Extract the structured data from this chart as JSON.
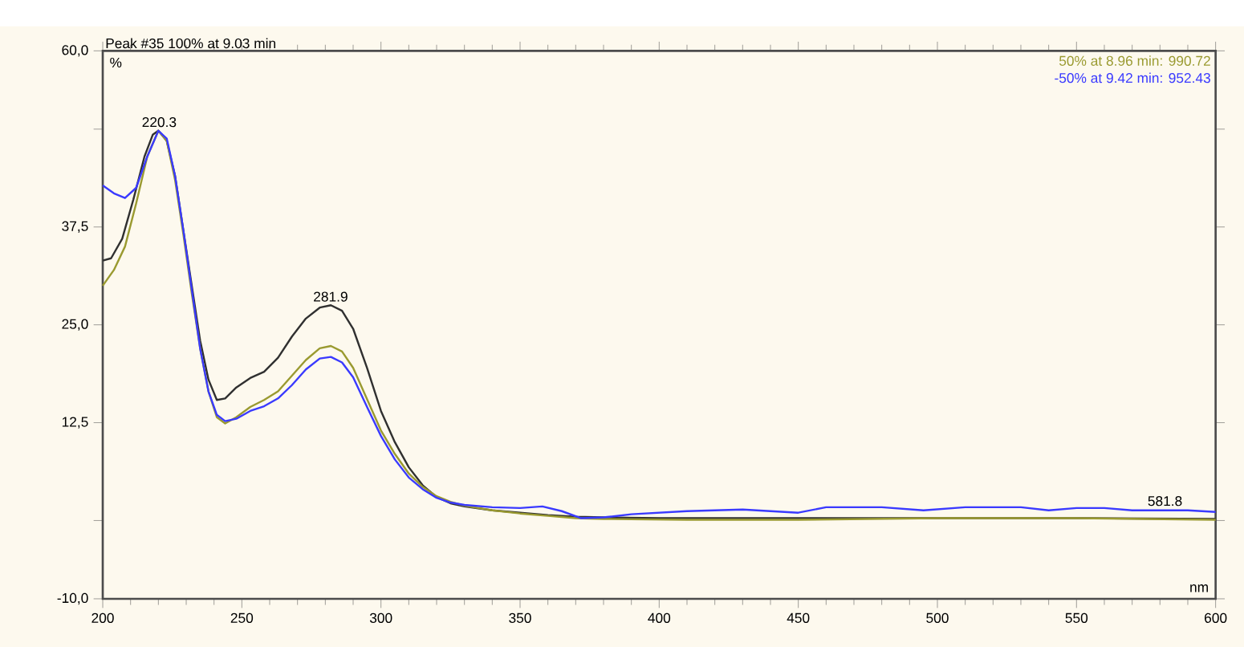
{
  "chart_data": {
    "type": "line",
    "title": "Peak #35   100% at 9.03 min",
    "xlabel": "nm",
    "ylabel": "%",
    "xlim": [
      200,
      600
    ],
    "xticks": [
      200,
      250,
      300,
      350,
      400,
      450,
      500,
      550,
      600
    ],
    "ylim": [
      -10,
      60
    ],
    "yticks": [
      {
        "value": -10,
        "label": "-10,0"
      },
      {
        "value": 0,
        "label": null
      },
      {
        "value": 12.5,
        "label": "12,5"
      },
      {
        "value": 25,
        "label": "25,0"
      },
      {
        "value": 37.5,
        "label": "37,5"
      },
      {
        "value": 50,
        "label": null
      },
      {
        "value": 60,
        "label": "60,0"
      }
    ],
    "grid": false,
    "legend": "top right",
    "marker": "none",
    "line_style": "solid",
    "annotations": [
      {
        "text": "220.3",
        "x": 220.3,
        "y": 49.8
      },
      {
        "text": "281.9",
        "x": 281.9,
        "y": 27.5
      },
      {
        "text": "581.8",
        "x": 581.8,
        "y": 1.4
      }
    ],
    "series": [
      {
        "color": "#303030",
        "x": [
          200,
          203,
          207,
          211,
          215,
          218,
          220,
          223,
          226,
          229,
          232,
          235,
          238,
          241,
          244,
          248,
          253,
          258,
          263,
          268,
          273,
          278,
          282,
          286,
          290,
          295,
          300,
          305,
          310,
          315,
          320,
          325,
          330,
          340,
          350,
          360,
          370,
          380,
          400,
          450,
          500,
          550,
          600
        ],
        "values": [
          33.2,
          33.5,
          36,
          41,
          46.5,
          49.3,
          49.8,
          48.5,
          44,
          37,
          30,
          23,
          18,
          15.4,
          15.6,
          17,
          18.2,
          19,
          20.8,
          23.5,
          25.8,
          27.2,
          27.5,
          26.8,
          24.5,
          19.5,
          14,
          10,
          6.8,
          4.5,
          3.0,
          2.2,
          1.8,
          1.3,
          1.0,
          0.7,
          0.5,
          0.4,
          0.3,
          0.3,
          0.3,
          0.3,
          0.2
        ]
      },
      {
        "name": "50% at 8.96 min:  990.72",
        "color": "#9a9a30",
        "x": [
          200,
          204,
          208,
          212,
          216,
          220,
          223,
          226,
          229,
          232,
          235,
          238,
          241,
          244,
          248,
          253,
          258,
          263,
          268,
          273,
          278,
          282,
          286,
          290,
          295,
          300,
          305,
          310,
          315,
          320,
          325,
          330,
          340,
          350,
          360,
          370,
          380,
          410,
          450,
          500,
          550,
          600
        ],
        "values": [
          30,
          32,
          35,
          40.5,
          46.5,
          49.8,
          48.5,
          43.5,
          36.5,
          29,
          22,
          16.5,
          13.2,
          12.4,
          13.2,
          14.5,
          15.4,
          16.5,
          18.5,
          20.5,
          22,
          22.3,
          21.6,
          19.5,
          15.5,
          11.5,
          8.5,
          6,
          4.3,
          3.1,
          2.4,
          1.9,
          1.3,
          0.9,
          0.6,
          0.3,
          0.2,
          0.1,
          0.1,
          0.3,
          0.3,
          0.1
        ]
      },
      {
        "name": "-50% at 9.42 min:  952.43",
        "color": "#3a3aff",
        "x": [
          200,
          204,
          208,
          212,
          216,
          220,
          223,
          226,
          229,
          232,
          235,
          238,
          241,
          244,
          248,
          253,
          258,
          263,
          268,
          273,
          278,
          282,
          286,
          290,
          295,
          300,
          305,
          310,
          315,
          320,
          325,
          330,
          340,
          350,
          358,
          365,
          372,
          380,
          390,
          410,
          430,
          450,
          460,
          480,
          495,
          510,
          530,
          540,
          550,
          560,
          570,
          590,
          600
        ],
        "values": [
          42.8,
          41.8,
          41.2,
          42.5,
          46.5,
          49.8,
          48.8,
          44,
          37,
          29.5,
          22,
          16.5,
          13.5,
          12.7,
          13,
          14,
          14.6,
          15.6,
          17.3,
          19.3,
          20.7,
          20.9,
          20.2,
          18.3,
          14.5,
          10.8,
          7.8,
          5.5,
          4.0,
          2.9,
          2.3,
          2.0,
          1.7,
          1.6,
          1.8,
          1.2,
          0.3,
          0.4,
          0.8,
          1.2,
          1.4,
          1.0,
          1.7,
          1.7,
          1.3,
          1.7,
          1.7,
          1.3,
          1.6,
          1.6,
          1.3,
          1.3,
          1.1
        ]
      }
    ]
  }
}
